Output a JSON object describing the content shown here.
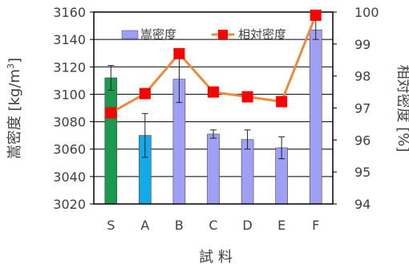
{
  "chart_data": {
    "type": "bar",
    "categories": [
      "S",
      "A",
      "B",
      "C",
      "D",
      "E",
      "F"
    ],
    "xlabel": "試 料",
    "ylabel_left": "嵩密度 [kg/m3]",
    "ylabel_right": "相対密度 [%]",
    "ylim_left": [
      3020,
      3160
    ],
    "yticks_left": [
      3020,
      3040,
      3060,
      3080,
      3100,
      3120,
      3140,
      3160
    ],
    "ylim_right": [
      94,
      100
    ],
    "yticks_right": [
      94,
      95,
      96,
      97,
      98,
      99,
      100
    ],
    "grid": "horizontal major gridlines",
    "legend_position": "top",
    "series": [
      {
        "name": "嵩密度",
        "kind": "bar",
        "axis": "left",
        "values": [
          3112,
          3070,
          3111,
          3071,
          3067,
          3061,
          3147
        ],
        "error": [
          9,
          16,
          17,
          3,
          7,
          8,
          7
        ],
        "colors": [
          "#1a9a4e",
          "#14a9e9",
          "#9f9ff5",
          "#9f9ff5",
          "#9f9ff5",
          "#9f9ff5",
          "#9f9ff5"
        ],
        "legend_color": "#9f9ff5"
      },
      {
        "name": "相対密度",
        "kind": "line",
        "axis": "right",
        "values": [
          96.85,
          97.45,
          98.7,
          97.5,
          97.35,
          97.2,
          99.9
        ],
        "line_color": "#f08a3a",
        "marker_color": "#ff0000"
      }
    ]
  }
}
